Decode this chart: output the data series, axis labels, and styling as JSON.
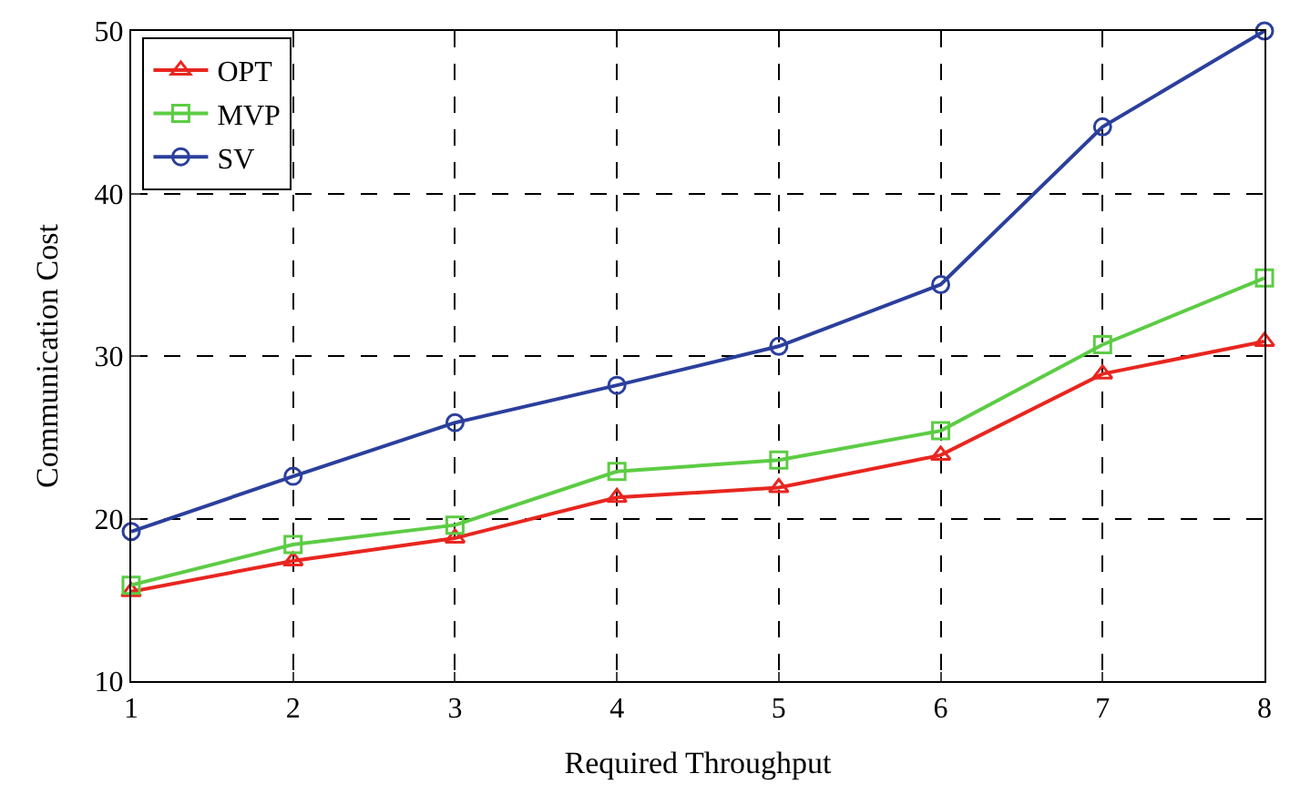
{
  "chart_data": {
    "type": "line",
    "xlabel": "Required Throughput",
    "ylabel": "Communication Cost",
    "x": [
      1,
      2,
      3,
      4,
      5,
      6,
      7,
      8
    ],
    "series": [
      {
        "name": "OPT",
        "color": "#e8261f",
        "marker": "triangle",
        "values": [
          15.5,
          17.4,
          18.8,
          21.3,
          21.9,
          23.9,
          28.9,
          30.9
        ]
      },
      {
        "name": "MVP",
        "color": "#5ccc44",
        "marker": "square",
        "values": [
          15.9,
          18.4,
          19.6,
          22.9,
          23.6,
          25.4,
          30.7,
          34.8
        ]
      },
      {
        "name": "SV",
        "color": "#2b3f9c",
        "marker": "circle",
        "values": [
          19.2,
          22.6,
          25.9,
          28.2,
          30.6,
          34.4,
          44.1,
          50
        ]
      }
    ],
    "xlim": [
      1,
      8
    ],
    "xticks": [
      1,
      2,
      3,
      4,
      5,
      6,
      7,
      8
    ],
    "ylim": [
      10,
      50
    ],
    "yticks": [
      10,
      20,
      30,
      40,
      50
    ],
    "grid": true,
    "legend": "top left",
    "line_style": "solid"
  }
}
